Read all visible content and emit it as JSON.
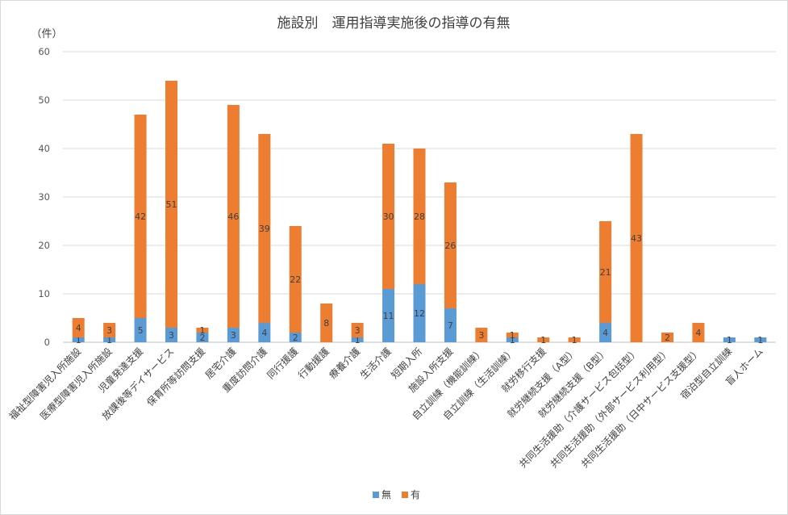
{
  "chart_data": {
    "type": "bar",
    "stacked": true,
    "title": "施設別　運用指導実施後の指導の有無",
    "ylabel": "（件）",
    "xlabel": "",
    "ylim": [
      0,
      60
    ],
    "yticks": [
      0,
      10,
      20,
      30,
      40,
      50,
      60
    ],
    "grid": true,
    "legend": "bottom",
    "colors": {
      "無": "#5b9bd5",
      "有": "#ed7d31"
    },
    "categories": [
      "福祉型障害児入所施設",
      "医療型障害児入所施設",
      "児童発達支援",
      "放課後等デイサービス",
      "保育所等訪問支援",
      "居宅介護",
      "重度訪問介護",
      "同行援護",
      "行動援護",
      "療養介護",
      "生活介護",
      "短期入所",
      "施設入所支援",
      "自立訓練（機能訓練）",
      "自立訓練（生活訓練）",
      "就労移行支援",
      "就労継続支援（A型）",
      "就労継続支援（B型）",
      "共同生活援助（介護サービス包括型）",
      "共同生活援助（外部サービス利用型）",
      "共同生活援助（日中サービス支援型）",
      "宿泊型自立訓練",
      "盲人ホーム"
    ],
    "series": [
      {
        "name": "無",
        "values": [
          1,
          1,
          5,
          3,
          2,
          3,
          4,
          2,
          0,
          1,
          11,
          12,
          7,
          0,
          1,
          0,
          0,
          4,
          0,
          0,
          0,
          1,
          1
        ]
      },
      {
        "name": "有",
        "values": [
          4,
          3,
          42,
          51,
          1,
          46,
          39,
          22,
          8,
          3,
          30,
          28,
          26,
          3,
          1,
          1,
          1,
          21,
          43,
          2,
          4,
          0,
          0
        ]
      }
    ]
  }
}
